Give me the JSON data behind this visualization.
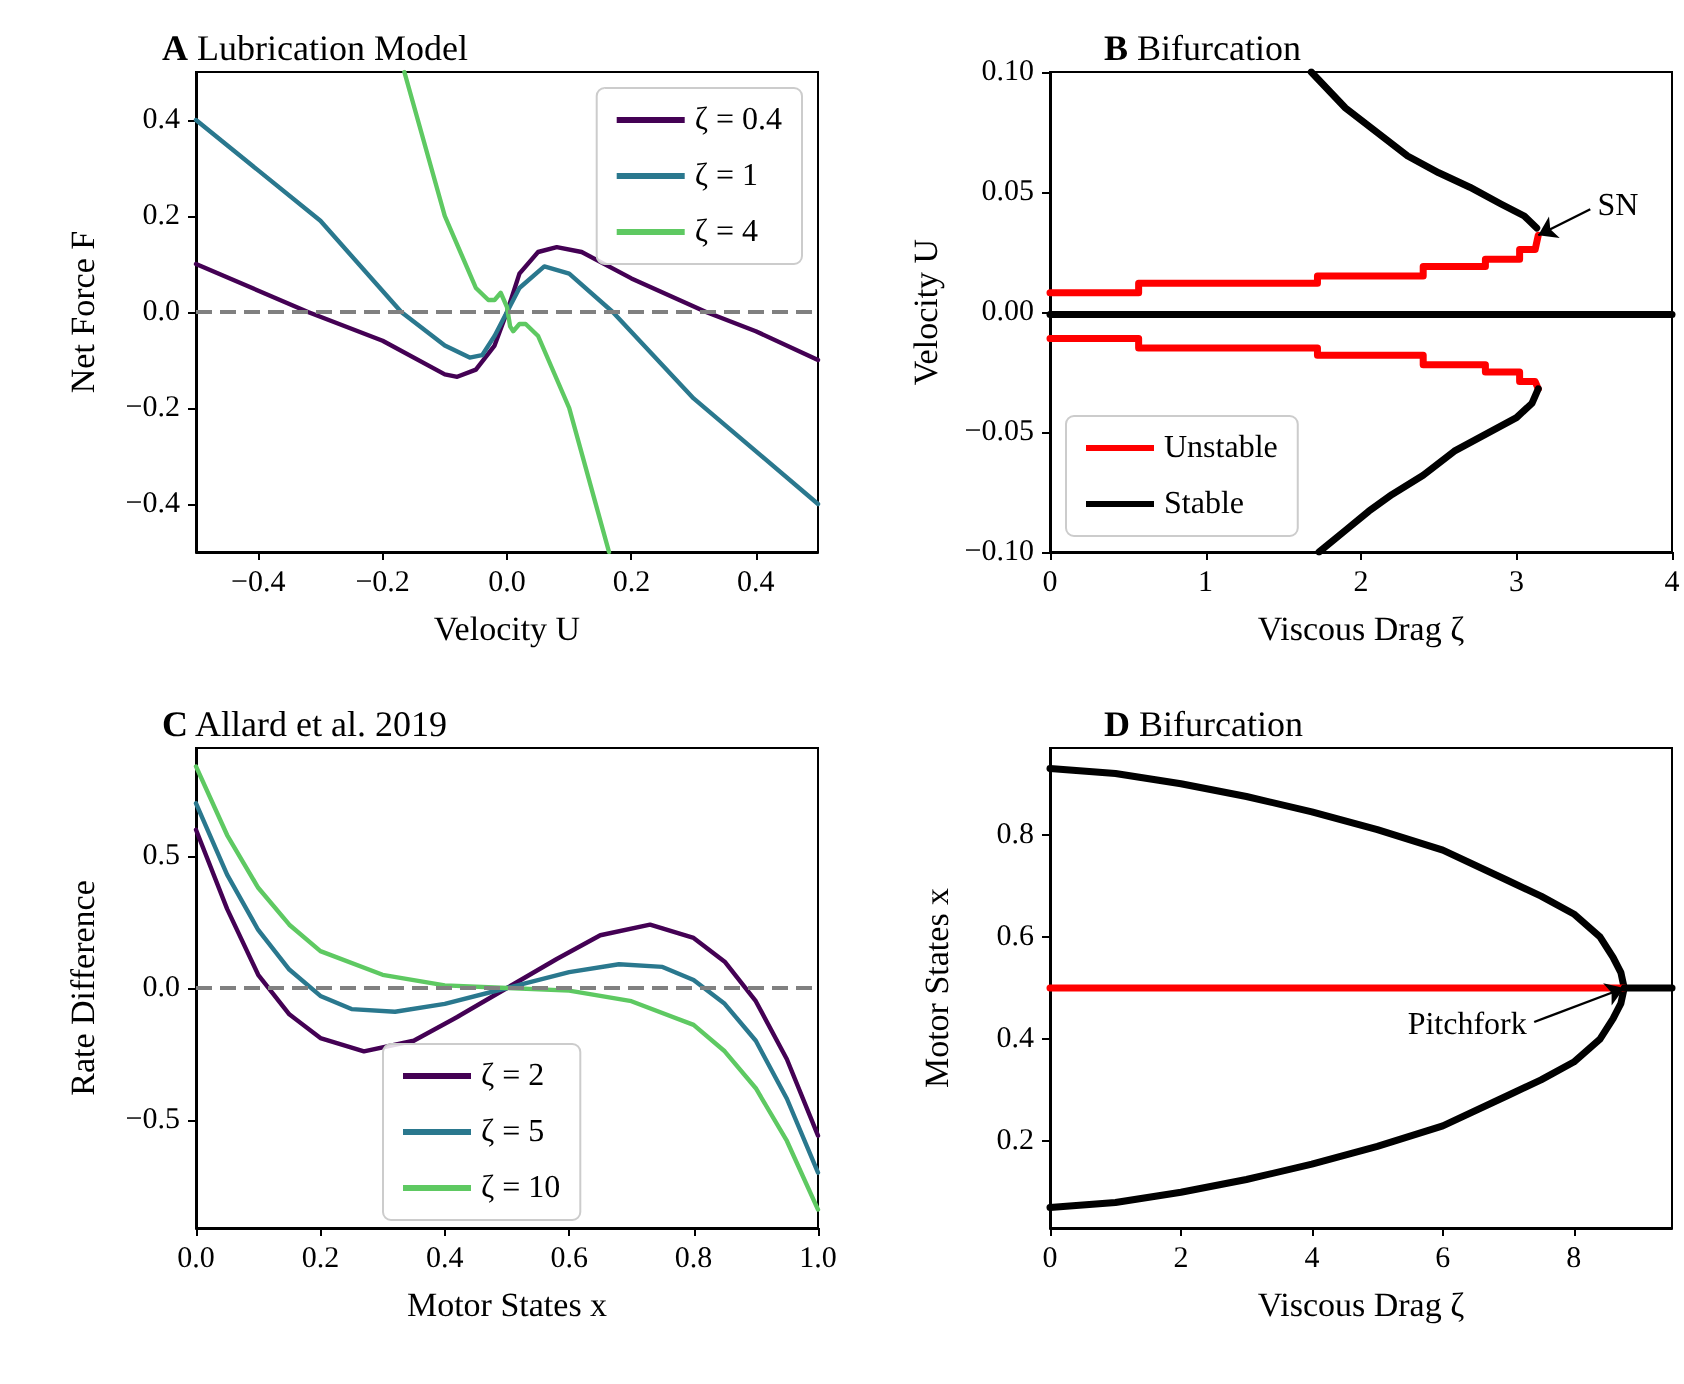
{
  "chart_data": [
    {
      "type": "line",
      "title": "A Lubrication Model",
      "xlabel": "Velocity U",
      "ylabel": "Net Force F",
      "xlim": [
        -0.5,
        0.5
      ],
      "ylim": [
        -0.5,
        0.5
      ],
      "xticks": [
        {
          "value": -0.4,
          "label": "−0.4"
        },
        {
          "value": -0.2,
          "label": "−0.2"
        },
        {
          "value": 0,
          "label": "0.0"
        },
        0.2,
        0.4
      ],
      "yticks": [
        {
          "value": -0.4,
          "label": "−0.4"
        },
        {
          "value": -0.2,
          "label": "−0.2"
        },
        {
          "value": 0,
          "label": "0.0"
        },
        0.2,
        0.4
      ],
      "legend": "top right",
      "ref_lines": [
        {
          "axis": "y",
          "value": 0,
          "color": "#808080",
          "line_style": "dashed"
        }
      ],
      "series": [
        {
          "name": "ζ = 0.4",
          "color": "#440154",
          "x": [
            -0.5,
            -0.32,
            -0.2,
            -0.1,
            -0.08,
            -0.05,
            -0.02,
            0,
            0.02,
            0.05,
            0.08,
            0.12,
            0.2,
            0.32,
            0.4,
            0.5
          ],
          "values": [
            0.1,
            0,
            -0.06,
            -0.13,
            -0.135,
            -0.12,
            -0.07,
            0,
            0.08,
            0.125,
            0.135,
            0.125,
            0.07,
            0,
            -0.04,
            -0.1
          ]
        },
        {
          "name": "ζ = 1",
          "color": "#2a788e",
          "x": [
            -0.5,
            -0.3,
            -0.17,
            -0.1,
            -0.06,
            -0.04,
            -0.02,
            0,
            0.02,
            0.06,
            0.1,
            0.17,
            0.3,
            0.5
          ],
          "values": [
            0.4,
            0.19,
            0,
            -0.07,
            -0.095,
            -0.09,
            -0.05,
            0,
            0.05,
            0.095,
            0.08,
            0,
            -0.18,
            -0.4
          ]
        },
        {
          "name": "ζ = 4",
          "color": "#5ec962",
          "x": [
            -0.165,
            -0.1,
            -0.05,
            -0.03,
            -0.02,
            -0.01,
            0,
            0.005,
            0.01,
            0.02,
            0.03,
            0.05,
            0.1,
            0.164
          ],
          "values": [
            0.5,
            0.2,
            0.05,
            0.025,
            0.025,
            0.04,
            0.01,
            -0.03,
            -0.04,
            -0.025,
            -0.025,
            -0.05,
            -0.2,
            -0.5
          ]
        }
      ]
    },
    {
      "type": "line",
      "title": "B Bifurcation",
      "xlabel": "Viscous Drag ζ",
      "ylabel": "Velocity U",
      "xlim": [
        0,
        4
      ],
      "ylim": [
        -0.1,
        0.1
      ],
      "xticks": [
        0,
        1,
        2,
        3,
        4
      ],
      "yticks": [
        {
          "value": -0.1,
          "label": "−0.10"
        },
        {
          "value": -0.05,
          "label": "−0.05"
        },
        {
          "value": 0,
          "label": "0.00"
        },
        {
          "value": 0.05,
          "label": "0.05"
        },
        {
          "value": 0.1,
          "label": "0.10"
        }
      ],
      "legend": "bottom left",
      "annotations": [
        {
          "text": "SN",
          "x": 3.14,
          "y": 0.032
        }
      ],
      "series": [
        {
          "name": "Unstable",
          "color": "#ff0000",
          "x": [
            0,
            0.57,
            0.57,
            1.72,
            1.72,
            2.4,
            2.4,
            2.8,
            2.8,
            3.02,
            3.02,
            3.12,
            3.14
          ],
          "values": [
            0.008,
            0.008,
            0.012,
            0.012,
            0.015,
            0.015,
            0.019,
            0.019,
            0.022,
            0.022,
            0.026,
            0.026,
            0.032
          ]
        },
        {
          "color": "#ff0000",
          "x": [
            0,
            0.57,
            0.57,
            1.72,
            1.72,
            2.4,
            2.4,
            2.8,
            2.8,
            3.02,
            3.02,
            3.12,
            3.14
          ],
          "values": [
            -0.011,
            -0.011,
            -0.015,
            -0.015,
            -0.018,
            -0.018,
            -0.022,
            -0.022,
            -0.025,
            -0.025,
            -0.029,
            -0.029,
            -0.032
          ]
        },
        {
          "name": "Stable",
          "color": "#000000",
          "x": [
            0,
            4
          ],
          "values": [
            -0.001,
            -0.001
          ]
        },
        {
          "color": "#000000",
          "x": [
            1.68,
            1.9,
            2.1,
            2.3,
            2.5,
            2.7,
            2.9,
            3.05,
            3.13
          ],
          "values": [
            0.1,
            0.085,
            0.075,
            0.065,
            0.058,
            0.052,
            0.045,
            0.04,
            0.035
          ]
        },
        {
          "color": "#000000",
          "x": [
            3.14,
            3.1,
            3.0,
            2.8,
            2.6,
            2.4,
            2.2,
            2.05,
            1.9,
            1.73
          ],
          "values": [
            -0.032,
            -0.038,
            -0.044,
            -0.051,
            -0.058,
            -0.068,
            -0.076,
            -0.083,
            -0.091,
            -0.1
          ]
        }
      ]
    },
    {
      "type": "line",
      "title": "C Allard et al. 2019",
      "xlabel": "Motor States x",
      "ylabel": "Rate Difference",
      "xlim": [
        0,
        1
      ],
      "ylim": [
        -0.91,
        0.91
      ],
      "xticks": [
        {
          "value": 0,
          "label": "0.0"
        },
        0.2,
        0.4,
        0.6,
        0.8,
        {
          "value": 1,
          "label": "1.0"
        }
      ],
      "yticks": [
        {
          "value": -0.5,
          "label": "−0.5"
        },
        {
          "value": 0,
          "label": "0.0"
        },
        0.5
      ],
      "legend": "bottom",
      "ref_lines": [
        {
          "axis": "y",
          "value": 0,
          "color": "#808080",
          "line_style": "dashed"
        }
      ],
      "series": [
        {
          "name": "ζ = 2",
          "color": "#440154",
          "x": [
            0,
            0.05,
            0.1,
            0.15,
            0.2,
            0.27,
            0.35,
            0.42,
            0.5,
            0.58,
            0.65,
            0.73,
            0.8,
            0.85,
            0.9,
            0.95,
            1
          ],
          "values": [
            0.6,
            0.3,
            0.05,
            -0.1,
            -0.19,
            -0.24,
            -0.2,
            -0.11,
            0,
            0.11,
            0.2,
            0.24,
            0.19,
            0.1,
            -0.05,
            -0.27,
            -0.56
          ]
        },
        {
          "name": "ζ = 5",
          "color": "#2a788e",
          "x": [
            0,
            0.05,
            0.1,
            0.15,
            0.2,
            0.25,
            0.32,
            0.4,
            0.5,
            0.6,
            0.68,
            0.75,
            0.8,
            0.85,
            0.9,
            0.95,
            1
          ],
          "values": [
            0.7,
            0.43,
            0.22,
            0.07,
            -0.03,
            -0.08,
            -0.09,
            -0.06,
            0,
            0.06,
            0.09,
            0.08,
            0.03,
            -0.06,
            -0.2,
            -0.42,
            -0.7
          ]
        },
        {
          "name": "ζ = 10",
          "color": "#5ec962",
          "x": [
            0,
            0.05,
            0.1,
            0.15,
            0.2,
            0.3,
            0.4,
            0.5,
            0.6,
            0.7,
            0.8,
            0.85,
            0.9,
            0.95,
            1
          ],
          "values": [
            0.84,
            0.58,
            0.38,
            0.24,
            0.14,
            0.05,
            0.01,
            0,
            -0.01,
            -0.05,
            -0.14,
            -0.24,
            -0.38,
            -0.58,
            -0.84
          ]
        }
      ]
    },
    {
      "type": "line",
      "title": "D Bifurcation",
      "xlabel": "Viscous Drag ζ",
      "ylabel": "Motor States x",
      "xlim": [
        0,
        9.5
      ],
      "ylim": [
        0.03,
        0.97
      ],
      "xticks": [
        0,
        2,
        4,
        6,
        8
      ],
      "yticks": [
        0.2,
        0.4,
        0.6,
        0.8
      ],
      "annotations": [
        {
          "text": "Pitchfork",
          "x": 8.77,
          "y": 0.5
        }
      ],
      "series": [
        {
          "color": "#000000",
          "x": [
            0,
            1,
            2,
            3,
            4,
            5,
            6,
            7,
            7.5,
            8,
            8.4,
            8.6,
            8.72,
            8.77,
            8.72,
            8.6,
            8.4,
            8,
            7.5,
            7,
            6,
            5,
            4,
            3,
            2,
            1,
            0
          ],
          "values": [
            0.93,
            0.92,
            0.9,
            0.875,
            0.845,
            0.81,
            0.77,
            0.71,
            0.68,
            0.645,
            0.6,
            0.56,
            0.53,
            0.5,
            0.47,
            0.44,
            0.4,
            0.355,
            0.32,
            0.29,
            0.23,
            0.19,
            0.155,
            0.125,
            0.1,
            0.08,
            0.07
          ]
        },
        {
          "color": "#ff0000",
          "x": [
            0,
            8.77
          ],
          "values": [
            0.5,
            0.5
          ]
        },
        {
          "color": "#000000",
          "x": [
            8.77,
            9.5
          ],
          "values": [
            0.5,
            0.5
          ]
        }
      ]
    }
  ]
}
